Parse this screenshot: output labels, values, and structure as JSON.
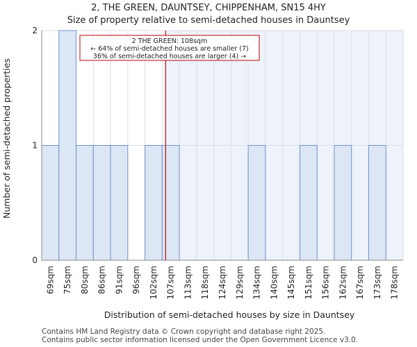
{
  "header": {
    "title_line1": "2, THE GREEN, DAUNTSEY, CHIPPENHAM, SN15 4HY",
    "title_line2": "Size of property relative to semi-detached houses in Dauntsey"
  },
  "footer": {
    "line1": "Contains HM Land Registry data © Crown copyright and database right 2025.",
    "line2": "Contains public sector information licensed under the Open Government Licence v3.0."
  },
  "chart_data": {
    "type": "bar",
    "title": "Size of property relative to semi-detached houses in Dauntsey",
    "xlabel": "Distribution of semi-detached houses by size in Dauntsey",
    "ylabel": "Number of semi-detached properties",
    "categories": [
      "69sqm",
      "75sqm",
      "80sqm",
      "86sqm",
      "91sqm",
      "96sqm",
      "102sqm",
      "107sqm",
      "113sqm",
      "118sqm",
      "124sqm",
      "129sqm",
      "134sqm",
      "140sqm",
      "145sqm",
      "151sqm",
      "156sqm",
      "162sqm",
      "167sqm",
      "173sqm",
      "178sqm"
    ],
    "values": [
      1,
      2,
      1,
      1,
      1,
      0,
      1,
      1,
      0,
      0,
      0,
      0,
      1,
      0,
      0,
      1,
      0,
      1,
      0,
      1,
      0
    ],
    "ylim": [
      0,
      2
    ],
    "yticks": [
      0,
      1,
      2
    ],
    "property_marker": {
      "position_bin": 7.2,
      "label": "2 THE GREEN: 108sqm",
      "line2": "← 64% of semi-detached houses are smaller (7)",
      "line3": "36% of semi-detached houses are larger (4) →"
    },
    "colors": {
      "bar_fill": "#dce6f5",
      "bar_edge": "#6e93c9",
      "highlight_bg": "#eef2fa",
      "marker": "#c00000",
      "grid": "#d9dfe9"
    }
  }
}
